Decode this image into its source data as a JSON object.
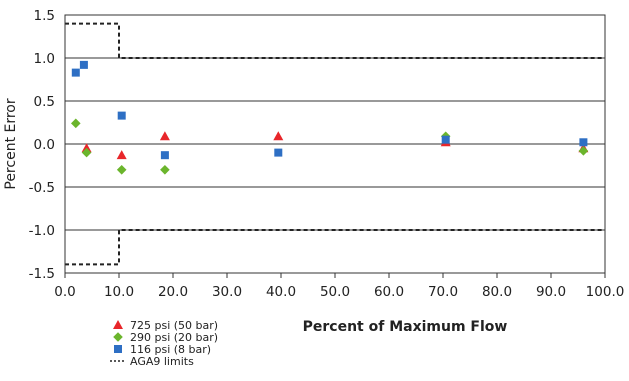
{
  "chart_data": {
    "type": "scatter",
    "xlabel": "Percent of Maximum Flow",
    "ylabel": "Percent Error",
    "xlim": [
      0,
      100
    ],
    "ylim": [
      -1.5,
      1.5
    ],
    "x_ticks": [
      "0.0",
      "10.0",
      "20.0",
      "30.0",
      "40.0",
      "50.0",
      "60.0",
      "70.0",
      "80.0",
      "90.0",
      "100.0"
    ],
    "y_ticks": [
      "1.5",
      "1.0",
      "0.5",
      "0.0",
      "-0.5",
      "-1.0",
      "-1.5"
    ],
    "grid": "horizontal",
    "legend_position": "bottom-left",
    "series": [
      {
        "name": "725 psi (50 bar)",
        "marker": "triangle",
        "color": "#e8262a",
        "points": [
          [
            4,
            -0.05
          ],
          [
            10.5,
            -0.13
          ],
          [
            18.5,
            0.09
          ],
          [
            39.5,
            0.09
          ],
          [
            70.5,
            0.02
          ],
          [
            96,
            -0.05
          ]
        ]
      },
      {
        "name": "290 psi (20 bar)",
        "marker": "diamond",
        "color": "#6bb52c",
        "points": [
          [
            2,
            0.24
          ],
          [
            4,
            -0.1
          ],
          [
            10.5,
            -0.3
          ],
          [
            18.5,
            -0.3
          ],
          [
            70.5,
            0.09
          ],
          [
            96,
            -0.08
          ]
        ]
      },
      {
        "name": "116 psi (8 bar)",
        "marker": "square",
        "color": "#2e6fc4",
        "points": [
          [
            2,
            0.83
          ],
          [
            3.5,
            0.92
          ],
          [
            10.5,
            0.33
          ],
          [
            18.5,
            -0.13
          ],
          [
            39.5,
            -0.1
          ],
          [
            70.5,
            0.05
          ],
          [
            96,
            0.02
          ]
        ]
      }
    ],
    "limits": {
      "name": "AGA9 limits",
      "style": "dotted",
      "color": "#222222",
      "upper": [
        [
          0,
          1.4
        ],
        [
          10,
          1.4
        ],
        [
          10,
          1.0
        ],
        [
          100,
          1.0
        ]
      ],
      "lower": [
        [
          0,
          -1.4
        ],
        [
          10,
          -1.4
        ],
        [
          10,
          -1.0
        ],
        [
          100,
          -1.0
        ]
      ]
    }
  }
}
